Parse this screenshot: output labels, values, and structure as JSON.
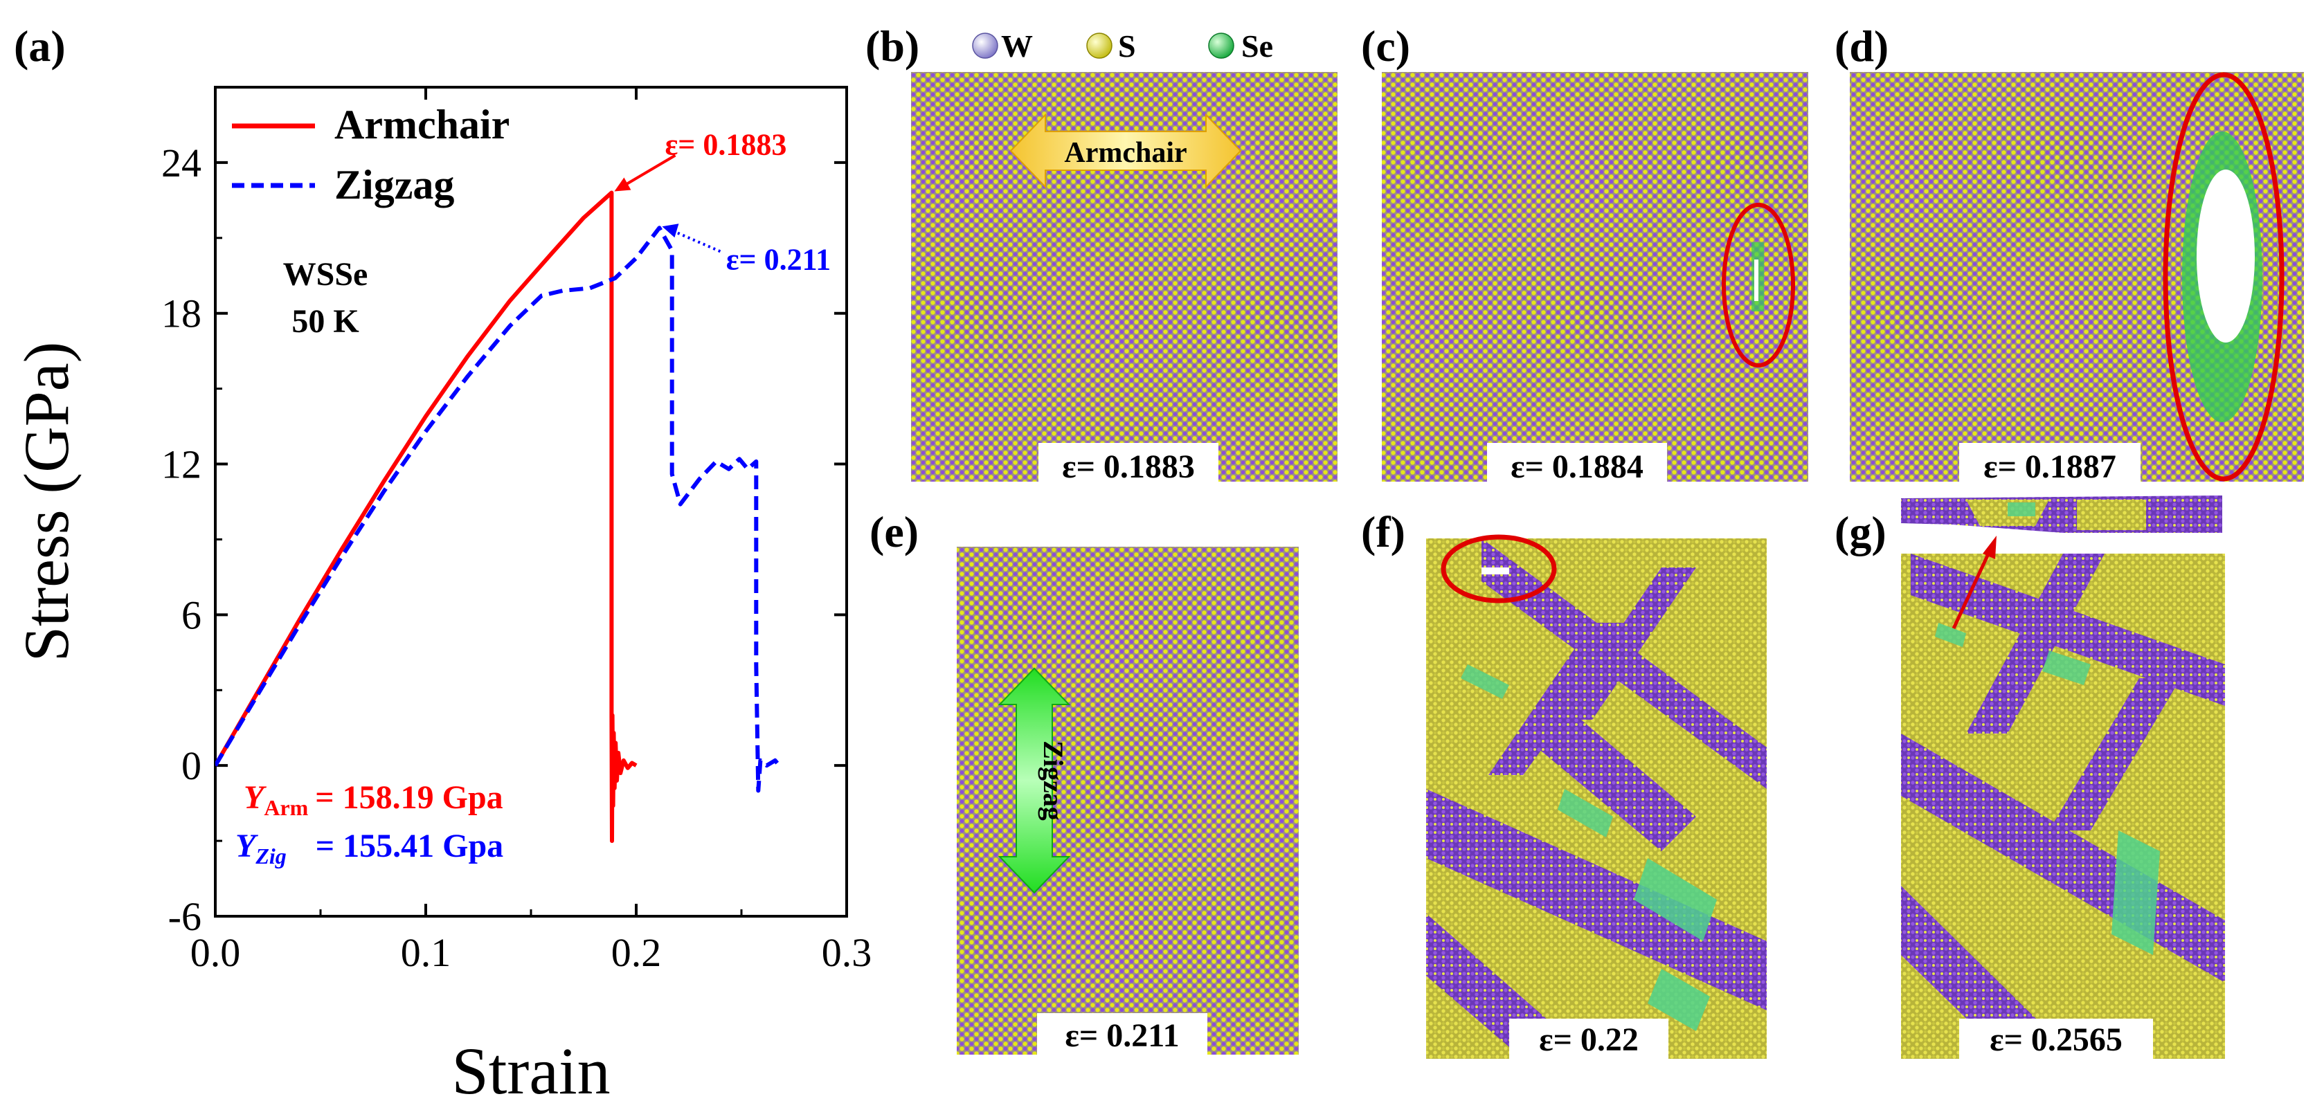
{
  "colors": {
    "armchair": "#ff0000",
    "zigzag": "#0000ff",
    "W": "#a9a2e6",
    "S": "#e6e61a",
    "Se": "#33cc55",
    "purple": "#8c4fd6",
    "yellow": "#e0dd4e",
    "green_band": "#4fd28c",
    "fracture_ring": "#e00000"
  },
  "chart_data": {
    "type": "line",
    "panel_label": "(a)",
    "xlabel": "Strain",
    "ylabel": "Stress (GPa)",
    "xlim": [
      0.0,
      0.3
    ],
    "ylim": [
      -6,
      27
    ],
    "xticks": [
      "0.0",
      "0.1",
      "0.2",
      "0.3"
    ],
    "yticks": [
      "-6",
      "0",
      "6",
      "12",
      "18",
      "24"
    ],
    "material_label": "WSSe",
    "temperature_label": "50 K",
    "series": [
      {
        "name": "Armchair",
        "style": "solid",
        "points": [
          [
            0,
            0
          ],
          [
            0.02,
            2.9
          ],
          [
            0.04,
            5.8
          ],
          [
            0.06,
            8.6
          ],
          [
            0.08,
            11.3
          ],
          [
            0.1,
            13.9
          ],
          [
            0.12,
            16.3
          ],
          [
            0.14,
            18.5
          ],
          [
            0.16,
            20.4
          ],
          [
            0.175,
            21.8
          ],
          [
            0.1883,
            22.8
          ],
          [
            0.1883,
            2.0
          ],
          [
            0.1885,
            -3.0
          ],
          [
            0.1887,
            2.0
          ],
          [
            0.189,
            -1.6
          ],
          [
            0.1893,
            1.3
          ],
          [
            0.1897,
            -0.9
          ],
          [
            0.1902,
            0.9
          ],
          [
            0.1908,
            -0.6
          ],
          [
            0.1915,
            0.5
          ],
          [
            0.1925,
            -0.3
          ],
          [
            0.194,
            0.2
          ],
          [
            0.196,
            -0.1
          ],
          [
            0.198,
            0.1
          ],
          [
            0.2,
            0
          ]
        ]
      },
      {
        "name": "Zigzag",
        "style": "dashed",
        "points": [
          [
            0,
            0
          ],
          [
            0.02,
            2.8
          ],
          [
            0.04,
            5.6
          ],
          [
            0.06,
            8.3
          ],
          [
            0.08,
            10.9
          ],
          [
            0.1,
            13.3
          ],
          [
            0.12,
            15.5
          ],
          [
            0.14,
            17.5
          ],
          [
            0.155,
            18.7
          ],
          [
            0.165,
            18.9
          ],
          [
            0.178,
            19.0
          ],
          [
            0.19,
            19.4
          ],
          [
            0.2,
            20.2
          ],
          [
            0.211,
            21.4
          ],
          [
            0.217,
            20.5
          ],
          [
            0.217,
            11.6
          ],
          [
            0.221,
            10.4
          ],
          [
            0.23,
            11.4
          ],
          [
            0.238,
            12.1
          ],
          [
            0.244,
            11.8
          ],
          [
            0.249,
            12.2
          ],
          [
            0.253,
            11.8
          ],
          [
            0.257,
            12.1
          ],
          [
            0.257,
            4.0
          ],
          [
            0.258,
            -1.0
          ],
          [
            0.259,
            0.2
          ],
          [
            0.262,
            0
          ],
          [
            0.266,
            0.2
          ],
          [
            0.268,
            0
          ]
        ]
      }
    ],
    "annotations": [
      {
        "text": "ε= 0.1883",
        "series": "Armchair",
        "at": [
          0.1883,
          22.8
        ]
      },
      {
        "text": "ε= 0.211",
        "series": "Zigzag",
        "at": [
          0.211,
          21.4
        ]
      }
    ],
    "youngs_modulus": {
      "armchair": {
        "symbol": "Y",
        "subscript": "Arm",
        "text": "= 158.19 Gpa"
      },
      "zigzag": {
        "symbol": "Y",
        "subscript": "Zig",
        "text": "= 155.41 Gpa"
      }
    }
  },
  "snapshots": {
    "legend": {
      "W": "W",
      "S": "S",
      "Se": "Se"
    },
    "b": {
      "label": "(b)",
      "strain": "ε= 0.1883",
      "arrow_text": "Armchair"
    },
    "c": {
      "label": "(c)",
      "strain": "ε= 0.1884"
    },
    "d": {
      "label": "(d)",
      "strain": "ε= 0.1887"
    },
    "e": {
      "label": "(e)",
      "strain": "ε= 0.211",
      "arrow_text": "Zigzag"
    },
    "f": {
      "label": "(f)",
      "strain": "ε= 0.22"
    },
    "g": {
      "label": "(g)",
      "strain": "ε= 0.2565"
    }
  }
}
